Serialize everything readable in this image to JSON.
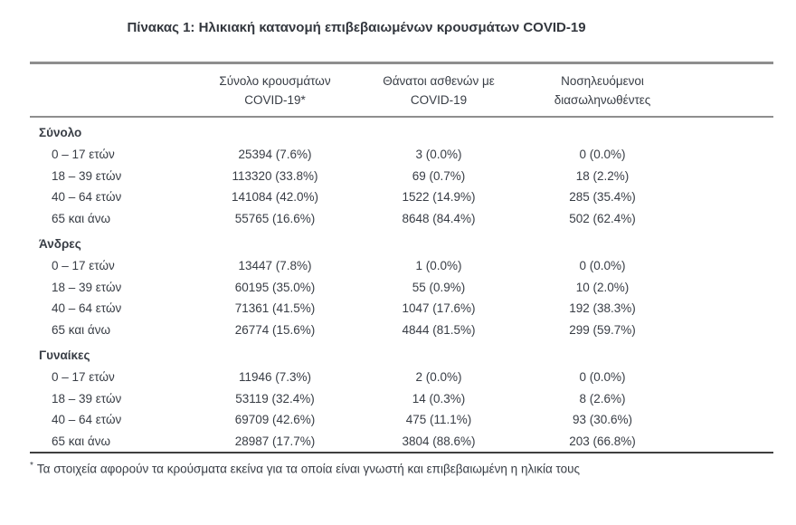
{
  "title": "Πίνακας 1: Ηλικιακή κατανομή επιβεβαιωμένων κρουσμάτων COVID-19",
  "table": {
    "columns": [
      {
        "line1": "Σύνολο κρουσμάτων",
        "line2": "COVID-19*"
      },
      {
        "line1": "Θάνατοι ασθενών με",
        "line2": "COVID-19"
      },
      {
        "line1": "Νοσηλευόμενοι",
        "line2": "διασωληνωθέντες"
      }
    ],
    "sections": [
      {
        "name": "Σύνολο",
        "rows": [
          {
            "label": "0 – 17 ετών",
            "cases": "25394 (7.6%)",
            "deaths": "3 (0.0%)",
            "intubated": "0 (0.0%)"
          },
          {
            "label": "18 – 39 ετών",
            "cases": "113320 (33.8%)",
            "deaths": "69 (0.7%)",
            "intubated": "18 (2.2%)"
          },
          {
            "label": "40 – 64 ετών",
            "cases": "141084 (42.0%)",
            "deaths": "1522 (14.9%)",
            "intubated": "285 (35.4%)"
          },
          {
            "label": "65 και άνω",
            "cases": "55765 (16.6%)",
            "deaths": "8648 (84.4%)",
            "intubated": "502 (62.4%)"
          }
        ]
      },
      {
        "name": "Άνδρες",
        "rows": [
          {
            "label": "0 – 17 ετών",
            "cases": "13447 (7.8%)",
            "deaths": "1 (0.0%)",
            "intubated": "0 (0.0%)"
          },
          {
            "label": "18 – 39 ετών",
            "cases": "60195 (35.0%)",
            "deaths": "55 (0.9%)",
            "intubated": "10 (2.0%)"
          },
          {
            "label": "40 – 64 ετών",
            "cases": "71361 (41.5%)",
            "deaths": "1047 (17.6%)",
            "intubated": "192 (38.3%)"
          },
          {
            "label": "65 και άνω",
            "cases": "26774 (15.6%)",
            "deaths": "4844 (81.5%)",
            "intubated": "299 (59.7%)"
          }
        ]
      },
      {
        "name": "Γυναίκες",
        "rows": [
          {
            "label": "0 – 17 ετών",
            "cases": "11946 (7.3%)",
            "deaths": "2 (0.0%)",
            "intubated": "0 (0.0%)"
          },
          {
            "label": "18 – 39 ετών",
            "cases": "53119 (32.4%)",
            "deaths": "14 (0.3%)",
            "intubated": "8 (2.6%)"
          },
          {
            "label": "40 – 64 ετών",
            "cases": "69709 (42.6%)",
            "deaths": "475 (11.1%)",
            "intubated": "93 (30.6%)"
          },
          {
            "label": "65 και άνω",
            "cases": "28987 (17.7%)",
            "deaths": "3804 (88.6%)",
            "intubated": "203 (66.8%)"
          }
        ]
      }
    ]
  },
  "footnote": {
    "marker": "*",
    "text": "Τα στοιχεία αφορούν τα κρούσματα εκείνα για τα οποία είναι γνωστή και επιβεβαιωμένη η ηλικία τους"
  },
  "colors": {
    "text": "#383d45",
    "rule_gray": "#8e8e8e",
    "rule_dark": "#3f3f3f",
    "background": "#ffffff"
  }
}
